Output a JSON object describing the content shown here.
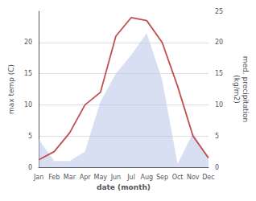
{
  "chart_data": {
    "type": "line",
    "categories": [
      "Jan",
      "Feb",
      "Mar",
      "Apr",
      "May",
      "Jun",
      "Jul",
      "Aug",
      "Sep",
      "Oct",
      "Nov",
      "Dec"
    ],
    "series": [
      {
        "type": "area",
        "axis": "y2",
        "color": "#b8c4e8",
        "values": [
          4.5,
          1.0,
          1.0,
          2.5,
          10.5,
          15.0,
          18.0,
          21.5,
          14.0,
          0.5,
          5.5,
          1.5
        ]
      },
      {
        "type": "line",
        "axis": "y",
        "color": "#c0504d",
        "values": [
          1.2,
          2.5,
          5.5,
          10.0,
          12.0,
          21.0,
          24.0,
          23.5,
          20.0,
          13.0,
          5.0,
          1.5
        ]
      }
    ],
    "xlabel": "date (month)",
    "ylabel": "max temp (C)",
    "y2label": "med. precipitation\n(kg/m2)",
    "ylim": [
      0,
      25
    ],
    "yticks": [
      0,
      5,
      10,
      15,
      20
    ],
    "y2lim": [
      0,
      25
    ],
    "y2ticks": [
      0,
      5,
      10,
      15,
      20,
      25
    ],
    "grid": true
  }
}
